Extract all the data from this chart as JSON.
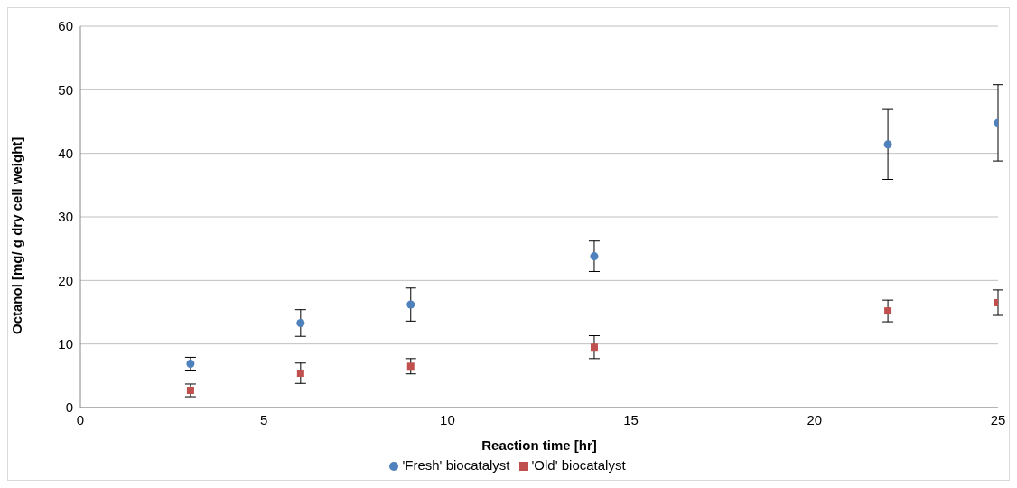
{
  "chart_data": {
    "type": "scatter",
    "xlabel": "Reaction time [hr]",
    "ylabel": "Octanol [mg/ g dry cell weight]",
    "xlim": [
      0,
      25
    ],
    "xticks": [
      0,
      5,
      10,
      15,
      20,
      25
    ],
    "ylim": [
      0,
      60
    ],
    "yticks": [
      0,
      10,
      20,
      30,
      40,
      50,
      60
    ],
    "grid": "y",
    "legend": "bottom",
    "series": [
      {
        "name": "'Fresh' biocatalyst",
        "color": "#4f81bd",
        "marker": "circle",
        "x": [
          3,
          6,
          9,
          14,
          22,
          25
        ],
        "values": [
          6.9,
          13.3,
          16.2,
          23.8,
          41.4,
          44.8
        ],
        "errors": [
          1,
          2.1,
          2.6,
          2.4,
          5.5,
          6
        ]
      },
      {
        "name": "'Old' biocatalyst",
        "color": "#c0504d",
        "marker": "square",
        "x": [
          3,
          6,
          9,
          14,
          22,
          25
        ],
        "values": [
          2.7,
          5.4,
          6.5,
          9.5,
          15.2,
          16.5
        ],
        "errors": [
          1,
          1.6,
          1.2,
          1.8,
          1.7,
          2
        ]
      }
    ]
  }
}
